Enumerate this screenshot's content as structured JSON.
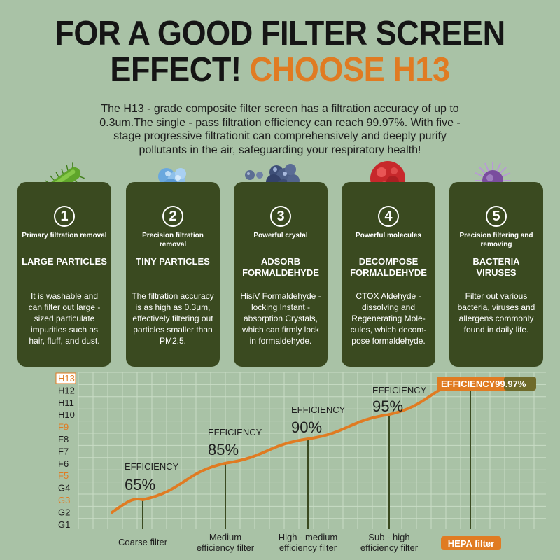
{
  "headline": {
    "line1": "FOR A GOOD FILTER SCREEN",
    "line2_dark": "EFFECT!",
    "line2_accent": "CHOOSE H13"
  },
  "intro": "The H13 - grade composite filter screen has a filtration accuracy of up to 0.3um.The single - pass filtration efficiency can reach 99.97%. With five - stage progressive filtrationit can comprehensively and deeply purify pollutants in the air, safeguarding your respiratory health!",
  "cards": [
    {
      "number": "1",
      "subtitle": "Primary filtration removal",
      "title": "LARGE PARTICLES",
      "description": "It is washable and can filter out large - sized particulate impurities such as hair, fluff, and dust.",
      "icon": "bacteria-rod-icon"
    },
    {
      "number": "2",
      "subtitle": "Precision filtration removal",
      "title": "TINY PARTICLES",
      "description": "The filtration accuracy is as high as 0.3μm, effectively filtering out particles smaller than PM2.5.",
      "icon": "particle-cluster-icon"
    },
    {
      "number": "3",
      "subtitle": "Powerful crystal",
      "title": "ADSORB FORMALDEHYDE",
      "description": "HisiV Formaldehyde - locking Instant - absorption Crystals, which can firmly lock in formaldehyde.",
      "icon": "crystal-molecule-icon"
    },
    {
      "number": "4",
      "subtitle": "Powerful molecules",
      "title": "DECOMPOSE FORMALDEHYDE",
      "description": "CTOX Aldehyde - dissolving and Regenerating Mole- cules, which decom- pose formaldehyde.",
      "icon": "red-molecule-icon"
    },
    {
      "number": "5",
      "subtitle": "Precision filtering and removing",
      "title": "BACTERIA VIRUSES",
      "description": "Filter out various bacteria, viruses and allergens commonly found in daily life.",
      "icon": "virus-icon"
    }
  ],
  "chart_data": {
    "type": "line",
    "title": "",
    "y_ticks": [
      "H13",
      "H12",
      "H11",
      "H10",
      "F9",
      "F8",
      "F7",
      "F6",
      "F5",
      "G4",
      "G3",
      "G2",
      "G1"
    ],
    "highlighted_ticks": [
      "H13",
      "F9",
      "F5",
      "G3"
    ],
    "categories": [
      "Coarse filter",
      "Medium efficiency filter",
      "High - medium efficiency filter",
      "Sub - high efficiency filter",
      "HEPA filter"
    ],
    "points": [
      {
        "category": "Coarse filter",
        "grade": "G3",
        "label": "EFFICIENCY",
        "value": "65%"
      },
      {
        "category": "Medium efficiency filter",
        "grade": "F6",
        "label": "EFFICIENCY",
        "value": "85%"
      },
      {
        "category": "High - medium efficiency filter",
        "grade": "F8",
        "label": "EFFICIENCY",
        "value": "90%"
      },
      {
        "category": "Sub - high efficiency filter",
        "grade": "H10",
        "label": "EFFICIENCY",
        "value": "95%"
      },
      {
        "category": "HEPA filter",
        "grade": "H13",
        "label": "EFFICIENCY99.97%",
        "value": ""
      }
    ],
    "grid": true,
    "colors": {
      "line": "#e07b22",
      "accent_orange": "#e07b22",
      "dark_olive": "#3a4a20",
      "grid": "#c9dcc5"
    }
  }
}
